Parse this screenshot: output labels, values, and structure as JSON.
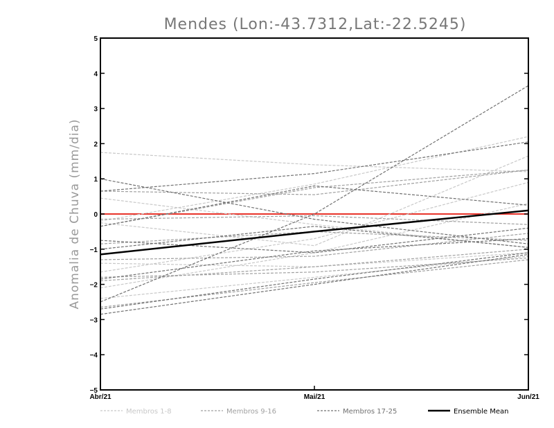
{
  "chart_data": {
    "type": "line",
    "title": "Mendes (Lon:-43.7312,Lat:-22.5245)",
    "xlabel": "",
    "ylabel": "Anomalia de Chuva (mm/dia)",
    "categories": [
      "Abr/21",
      "Mai/21",
      "Jun/21"
    ],
    "ylim": [
      -5,
      5
    ],
    "yticks": [
      -5,
      -4,
      -3,
      -2,
      -1,
      0,
      1,
      2,
      3,
      4,
      5
    ],
    "grid": false,
    "legend_position": "bottom",
    "zero_line": {
      "value": 0,
      "color": "#e8332a"
    },
    "groups": [
      {
        "label": "Membros 1-8",
        "color": "#c8c8c8",
        "dashed": true
      },
      {
        "label": "Membros 9-16",
        "color": "#a0a0a0",
        "dashed": true
      },
      {
        "label": "Membros 17-25",
        "color": "#707070",
        "dashed": true
      },
      {
        "label": "Ensemble Mean",
        "color": "#000000",
        "dashed": false
      }
    ],
    "series": [
      {
        "group": 0,
        "values": [
          1.75,
          1.4,
          1.2
        ]
      },
      {
        "group": 0,
        "values": [
          -0.2,
          0.85,
          2.2
        ]
      },
      {
        "group": 0,
        "values": [
          -1.65,
          -0.7,
          0.9
        ]
      },
      {
        "group": 0,
        "values": [
          -2.1,
          -1.1,
          0.3
        ]
      },
      {
        "group": 0,
        "values": [
          -1.4,
          -1.5,
          -1.1
        ]
      },
      {
        "group": 0,
        "values": [
          0.45,
          -0.3,
          -0.95
        ]
      },
      {
        "group": 0,
        "values": [
          -0.25,
          -0.9,
          1.65
        ]
      },
      {
        "group": 0,
        "values": [
          -2.4,
          -1.8,
          -1.2
        ]
      },
      {
        "group": 1,
        "values": [
          -0.35,
          0.75,
          1.25
        ]
      },
      {
        "group": 1,
        "values": [
          -0.85,
          -0.5,
          -0.75
        ]
      },
      {
        "group": 1,
        "values": [
          0.65,
          0.55,
          1.25
        ]
      },
      {
        "group": 1,
        "values": [
          -1.3,
          -1.2,
          -0.55
        ]
      },
      {
        "group": 1,
        "values": [
          -1.8,
          -1.65,
          -1.25
        ]
      },
      {
        "group": 1,
        "values": [
          -0.15,
          -0.05,
          -0.3
        ]
      },
      {
        "group": 1,
        "values": [
          -2.65,
          -1.95,
          -1.3
        ]
      },
      {
        "group": 1,
        "values": [
          -1.9,
          -1.5,
          -1.0
        ]
      },
      {
        "group": 2,
        "values": [
          -2.5,
          0.0,
          3.65
        ]
      },
      {
        "group": 2,
        "values": [
          1.0,
          -0.15,
          -0.85
        ]
      },
      {
        "group": 2,
        "values": [
          0.65,
          1.15,
          2.05
        ]
      },
      {
        "group": 2,
        "values": [
          -0.35,
          0.8,
          0.25
        ]
      },
      {
        "group": 2,
        "values": [
          -0.75,
          -1.1,
          -0.4
        ]
      },
      {
        "group": 2,
        "values": [
          -1.0,
          -0.35,
          -0.95
        ]
      },
      {
        "group": 2,
        "values": [
          -1.85,
          -1.05,
          -0.7
        ]
      },
      {
        "group": 2,
        "values": [
          -2.85,
          -2.0,
          -1.15
        ]
      },
      {
        "group": 2,
        "values": [
          -2.7,
          -1.85,
          -1.1
        ]
      },
      {
        "group": 3,
        "values": [
          -1.15,
          -0.5,
          0.1
        ]
      }
    ]
  }
}
